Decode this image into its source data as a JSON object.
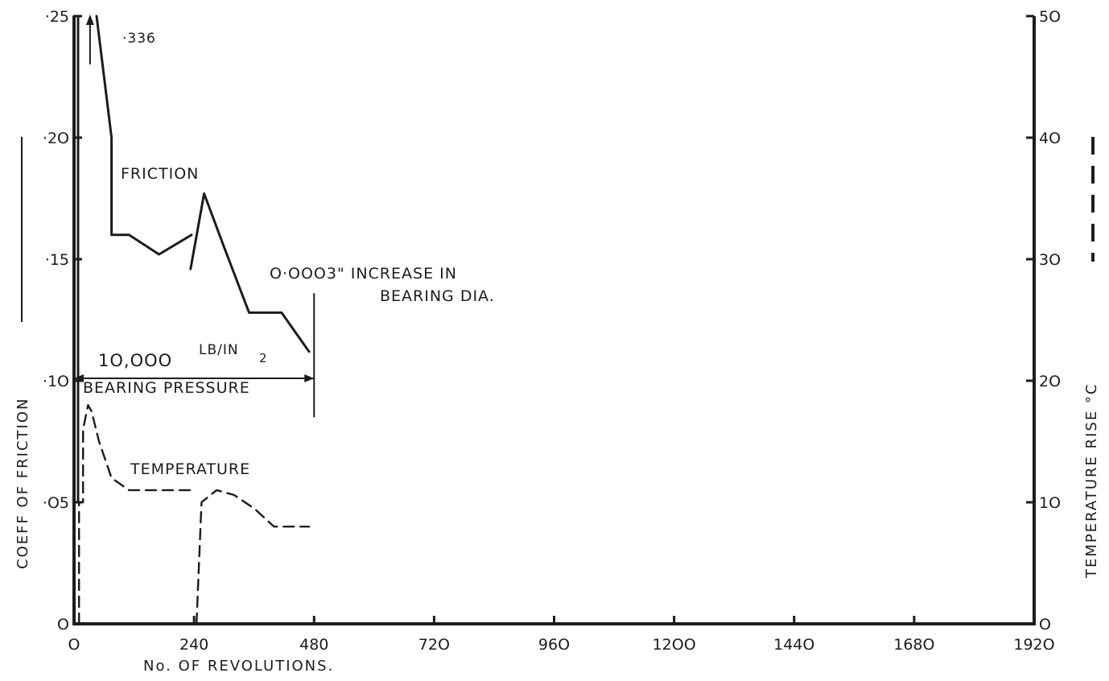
{
  "chart_data": {
    "type": "line",
    "xlabel": "No.  OF  REVOLUTIONS.",
    "ylabel": "COEFF  OF  FRICTION",
    "y2label": "TEMPERATURE  RISE  °C",
    "xlim": [
      0,
      1920
    ],
    "ylim": [
      0,
      0.25
    ],
    "y2lim": [
      0,
      50
    ],
    "x_ticks": [
      0,
      240,
      480,
      720,
      960,
      1200,
      1440,
      1680,
      1920
    ],
    "x_tick_labels": [
      "O",
      "240",
      "480",
      "72O",
      "96O",
      "12OO",
      "144O",
      "168O",
      "192O"
    ],
    "y_ticks": [
      0,
      0.05,
      0.1,
      0.15,
      0.2,
      0.25
    ],
    "y_tick_labels": [
      "O",
      "·O5",
      "·1O",
      "·15",
      "·2O",
      "·25"
    ],
    "y2_ticks": [
      0,
      10,
      20,
      30,
      40,
      50
    ],
    "y2_tick_labels": [
      "O",
      "1O",
      "2O",
      "3O",
      "4O",
      "5O"
    ],
    "series": [
      {
        "name": "FRICTION",
        "axis": "left",
        "style": "solid",
        "segments": [
          {
            "x": [
              0,
              0,
              8,
              8
            ],
            "y": [
              0.0,
              0.25,
              0.25,
              0.05
            ]
          },
          {
            "x": [
              45,
              75,
              75,
              110,
              170,
              235
            ],
            "y": [
              0.25,
              0.2,
              0.16,
              0.16,
              0.152,
              0.16
            ]
          },
          {
            "x": [
              233,
              260,
              300,
              350,
              415,
              470
            ],
            "y": [
              0.146,
              0.177,
              0.155,
              0.128,
              0.128,
              0.112
            ]
          }
        ]
      },
      {
        "name": "TEMPERATURE",
        "axis": "right",
        "style": "dashed",
        "segments": [
          {
            "x": [
              10,
              10,
              18,
              18,
              28,
              35,
              50,
              75,
              110,
              240
            ],
            "y": [
              0,
              10,
              10,
              16,
              18,
              17.5,
              15,
              12,
              11,
              11
            ]
          },
          {
            "x": [
              245,
              255,
              285,
              320,
              360,
              400,
              470
            ],
            "y": [
              0,
              10,
              11,
              10.6,
              9.5,
              8,
              8
            ]
          }
        ]
      }
    ],
    "annotations": {
      "peak_arrow": "·336",
      "friction_label": "FRICTION",
      "temperature_label": "TEMPERATURE",
      "dia_increase_line1": "O·OOO3\"  INCREASE  IN",
      "dia_increase_line2": "BEARING   DIA.",
      "pressure_line1": "1O,OOO",
      "pressure_unit": "LB/IN",
      "pressure_unit_sup": "2",
      "pressure_line2": "BEARING  PRESSURE",
      "pressure_range": [
        0,
        480
      ],
      "dia_marker_x": 480
    }
  }
}
